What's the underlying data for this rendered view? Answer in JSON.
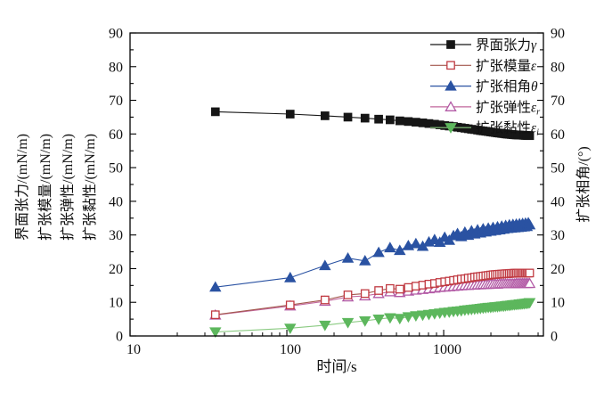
{
  "figure": {
    "background": "#ffffff",
    "frame_color": "#000000"
  },
  "chart_data": {
    "type": "line",
    "x_axis": {
      "label": "时间/s",
      "scale": "log",
      "min": 10,
      "max": 4325,
      "major_ticks": [
        10,
        100,
        1000
      ],
      "tick_labels": [
        "10",
        "100",
        "1000"
      ]
    },
    "y_left": {
      "titles": [
        "界面张力/(mN/m)",
        "扩张模量/(mN/m)",
        "扩张弹性/(mN/m)",
        "扩张黏性/(mN/m)"
      ],
      "min": 0,
      "max": 90,
      "major_step": 10,
      "minor_step": 5
    },
    "y_right": {
      "title": "扩张相角/(°)",
      "min": 0,
      "max": 90,
      "major_step": 10,
      "minor_step": 5
    },
    "legend": {
      "position": "top-right-inside",
      "border": false
    },
    "x": [
      35,
      105,
      175,
      245,
      315,
      385,
      455,
      525,
      595,
      665,
      735,
      805,
      875,
      945,
      1015,
      1085,
      1155,
      1225,
      1295,
      1365,
      1435,
      1505,
      1575,
      1645,
      1715,
      1785,
      1855,
      1925,
      1995,
      2065,
      2135,
      2205,
      2275,
      2345,
      2415,
      2485,
      2555,
      2625,
      2695,
      2765,
      2835,
      2905,
      2975,
      3045,
      3115,
      3185,
      3255,
      3325,
      3395,
      3465,
      3535
    ],
    "series": [
      {
        "name": "扩张黏性",
        "symbol": "ε",
        "subscript": "i",
        "marker": "triangle-down",
        "filled": true,
        "marker_color": "#5db75d",
        "line_color": "#8aca81",
        "values": [
          1.2,
          2.3,
          3.2,
          4.0,
          4.5,
          5.0,
          5.4,
          5.2,
          5.7,
          6.0,
          6.2,
          6.4,
          6.6,
          6.8,
          7.0,
          7.1,
          7.3,
          7.4,
          7.5,
          7.7,
          7.8,
          7.9,
          8.0,
          8.1,
          8.2,
          8.3,
          8.4,
          8.5,
          8.5,
          8.6,
          8.7,
          8.7,
          8.8,
          8.9,
          8.9,
          9.0,
          9.1,
          9.1,
          9.2,
          9.3,
          9.3,
          9.4,
          9.4,
          9.5,
          9.5,
          9.6,
          9.6,
          9.7,
          9.7,
          9.8,
          9.9
        ]
      },
      {
        "name": "扩张弹性",
        "symbol": "ε",
        "subscript": "r",
        "marker": "triangle-up",
        "filled": false,
        "marker_color": "#b25aa5",
        "line_color": "#c2669c",
        "values": [
          6.2,
          8.9,
          10.3,
          11.6,
          11.9,
          12.6,
          13.1,
          12.9,
          13.3,
          13.6,
          13.8,
          14.0,
          14.2,
          14.4,
          14.5,
          14.6,
          14.7,
          14.8,
          14.9,
          15.0,
          15.0,
          15.1,
          15.1,
          15.2,
          15.2,
          15.3,
          15.3,
          15.3,
          15.4,
          15.4,
          15.4,
          15.4,
          15.5,
          15.5,
          15.5,
          15.5,
          15.5,
          15.5,
          15.5,
          15.5,
          15.5,
          15.6,
          15.6,
          15.6,
          15.6,
          15.6,
          15.6,
          15.6,
          15.6,
          15.6,
          15.6
        ]
      },
      {
        "name": "扩张模量",
        "symbol": "ε",
        "subscript": "",
        "marker": "square",
        "filled": false,
        "marker_color": "#c03a42",
        "line_color": "#a3574d",
        "values": [
          6.3,
          9.2,
          10.7,
          12.2,
          12.6,
          13.5,
          14.1,
          13.9,
          14.4,
          14.8,
          15.1,
          15.4,
          15.6,
          15.9,
          16.1,
          16.3,
          16.5,
          16.7,
          16.9,
          17.0,
          17.2,
          17.3,
          17.5,
          17.6,
          17.7,
          17.8,
          17.9,
          18.0,
          18.1,
          18.2,
          18.25,
          18.3,
          18.35,
          18.4,
          18.45,
          18.5,
          18.5,
          18.55,
          18.6,
          18.6,
          18.65,
          18.65,
          18.7,
          18.7,
          18.7,
          18.7,
          18.7,
          18.7,
          18.7,
          18.7,
          18.7
        ]
      },
      {
        "name": "扩张相角",
        "symbol": "θ",
        "subscript": "",
        "marker": "triangle-up",
        "filled": true,
        "marker_color": "#2a52a2",
        "line_color": "#2a52a2",
        "values": [
          14.5,
          17.3,
          20.9,
          23.1,
          22.3,
          24.8,
          26.2,
          25.4,
          26.8,
          27.4,
          26.6,
          27.9,
          28.6,
          27.8,
          29.3,
          28.4,
          29.8,
          30.4,
          29.5,
          30.8,
          29.9,
          31.2,
          30.3,
          31.5,
          30.6,
          31.8,
          30.9,
          32.0,
          31.1,
          32.2,
          31.3,
          32.4,
          31.5,
          32.6,
          31.7,
          32.8,
          31.9,
          33.0,
          32.0,
          33.1,
          32.1,
          33.2,
          32.2,
          33.3,
          32.3,
          33.4,
          32.4,
          33.5,
          32.5,
          33.6,
          33.0
        ]
      },
      {
        "name": "界面张力",
        "symbol": "γ",
        "subscript": "",
        "marker": "square",
        "filled": true,
        "marker_color": "#161616",
        "line_color": "#161616",
        "values": [
          66.6,
          65.9,
          65.4,
          65.0,
          64.7,
          64.4,
          64.2,
          63.9,
          63.7,
          63.5,
          63.3,
          63.1,
          62.9,
          62.7,
          62.5,
          62.35,
          62.2,
          62.0,
          61.85,
          61.7,
          61.55,
          61.4,
          61.3,
          61.15,
          61.0,
          60.9,
          60.8,
          60.7,
          60.6,
          60.5,
          60.4,
          60.3,
          60.25,
          60.15,
          60.1,
          60.0,
          59.95,
          59.9,
          59.85,
          59.8,
          59.75,
          59.72,
          59.7,
          59.68,
          59.65,
          59.63,
          59.6,
          59.58,
          59.55,
          59.53,
          59.5
        ]
      }
    ],
    "legend_order": [
      "界面张力",
      "扩张模量",
      "扩张相角",
      "扩张弹性",
      "扩张黏性"
    ]
  }
}
